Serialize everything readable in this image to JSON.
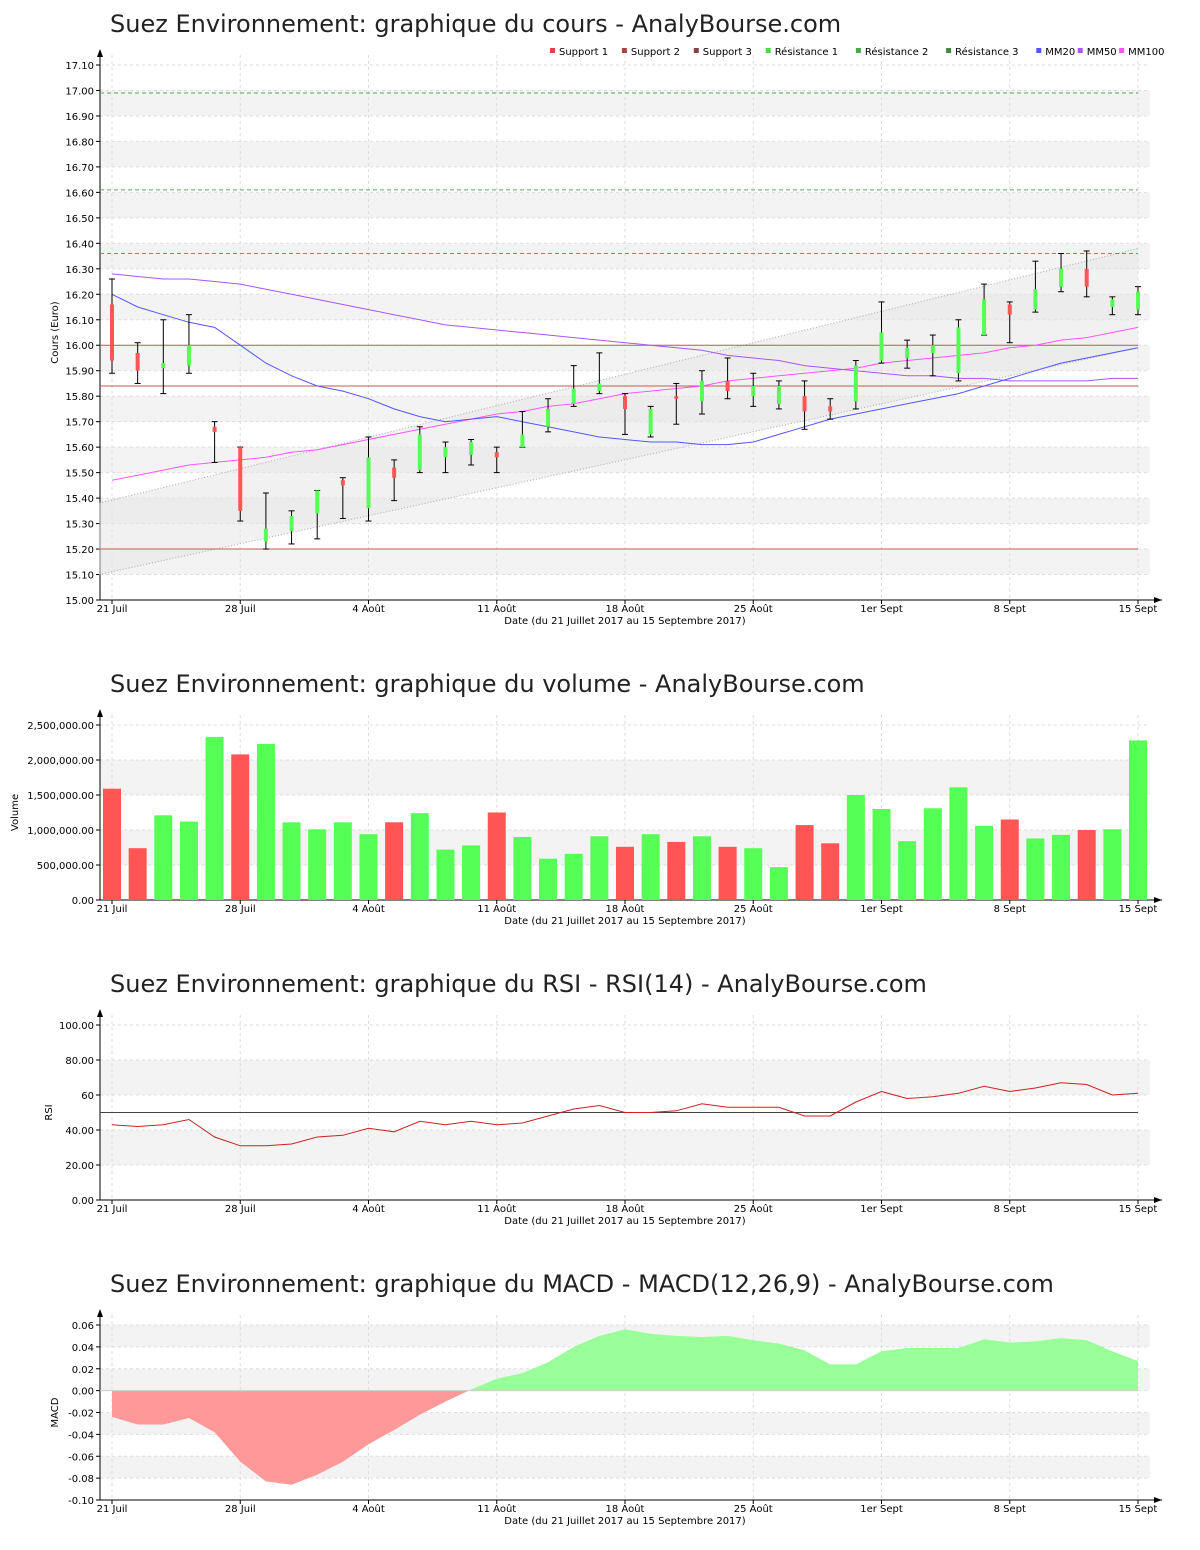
{
  "colors": {
    "up": "#55ff55",
    "down": "#ff5555",
    "support": "#cc5555",
    "resistance": "#55aa55",
    "mm20": "#5555ff",
    "mm50": "#aa55ff",
    "mm100": "#ff55ff",
    "rsi": "#cc2222",
    "macd_pos": "#99ff99",
    "macd_neg": "#ff9999"
  },
  "x_axis": {
    "label": "Date (du 21 Juillet 2017 au 15 Septembre 2017)",
    "tick_labels": [
      "21 Juil",
      "28 Juil",
      "4 Août",
      "11 Août",
      "18 Août",
      "25 Août",
      "1er Sept",
      "8 Sept",
      "15 Sept"
    ],
    "tick_day_index": [
      0,
      5,
      10,
      15,
      20,
      25,
      30,
      35,
      40
    ]
  },
  "chart_data": [
    {
      "type": "candlestick",
      "title": "Suez Environnement: graphique du cours - AnalyBourse.com",
      "ylabel": "Cours (Euro)",
      "ylim": [
        15.0,
        17.1
      ],
      "yticks": [
        "15.00",
        "15.10",
        "15.20",
        "15.30",
        "15.40",
        "15.50",
        "15.60",
        "15.70",
        "15.80",
        "15.90",
        "16.00",
        "16.10",
        "16.20",
        "16.30",
        "16.40",
        "16.50",
        "16.60",
        "16.70",
        "16.80",
        "16.90",
        "17.00",
        "17.10"
      ],
      "legend": [
        {
          "name": "Support 1",
          "color": "#dd4444"
        },
        {
          "name": "Support 2",
          "color": "#aa4444"
        },
        {
          "name": "Support 3",
          "color": "#884444"
        },
        {
          "name": "Résistance 1",
          "color": "#44dd44"
        },
        {
          "name": "Résistance 2",
          "color": "#44aa44"
        },
        {
          "name": "Résistance 3",
          "color": "#448844"
        },
        {
          "name": "MM20",
          "color": "#5555ff"
        },
        {
          "name": "MM50",
          "color": "#aa55ff"
        },
        {
          "name": "MM100",
          "color": "#ff55ff"
        }
      ],
      "levels": {
        "support": [
          15.84,
          16.0,
          15.2
        ],
        "resistance": [
          16.36,
          16.61,
          16.99
        ]
      },
      "ohlc": [
        {
          "o": 16.16,
          "h": 16.26,
          "l": 15.89,
          "c": 15.94
        },
        {
          "o": 15.97,
          "h": 16.01,
          "l": 15.85,
          "c": 15.9
        },
        {
          "o": 15.91,
          "h": 16.1,
          "l": 15.81,
          "c": 15.93
        },
        {
          "o": 15.92,
          "h": 16.12,
          "l": 15.89,
          "c": 16.0
        },
        {
          "o": 15.68,
          "h": 15.7,
          "l": 15.54,
          "c": 15.66
        },
        {
          "o": 15.6,
          "h": 15.6,
          "l": 15.31,
          "c": 15.35
        },
        {
          "o": 15.23,
          "h": 15.42,
          "l": 15.2,
          "c": 15.28
        },
        {
          "o": 15.27,
          "h": 15.35,
          "l": 15.22,
          "c": 15.33
        },
        {
          "o": 15.34,
          "h": 15.43,
          "l": 15.24,
          "c": 15.43
        },
        {
          "o": 15.47,
          "h": 15.48,
          "l": 15.32,
          "c": 15.45
        },
        {
          "o": 15.36,
          "h": 15.64,
          "l": 15.31,
          "c": 15.56
        },
        {
          "o": 15.52,
          "h": 15.55,
          "l": 15.39,
          "c": 15.48
        },
        {
          "o": 15.51,
          "h": 15.68,
          "l": 15.5,
          "c": 15.65
        },
        {
          "o": 15.56,
          "h": 15.62,
          "l": 15.5,
          "c": 15.6
        },
        {
          "o": 15.57,
          "h": 15.63,
          "l": 15.53,
          "c": 15.62
        },
        {
          "o": 15.58,
          "h": 15.6,
          "l": 15.5,
          "c": 15.56
        },
        {
          "o": 15.6,
          "h": 15.74,
          "l": 15.6,
          "c": 15.65
        },
        {
          "o": 15.68,
          "h": 15.79,
          "l": 15.66,
          "c": 15.75
        },
        {
          "o": 15.77,
          "h": 15.92,
          "l": 15.76,
          "c": 15.83
        },
        {
          "o": 15.82,
          "h": 15.97,
          "l": 15.81,
          "c": 15.85
        },
        {
          "o": 15.8,
          "h": 15.81,
          "l": 15.65,
          "c": 15.75
        },
        {
          "o": 15.65,
          "h": 15.76,
          "l": 15.64,
          "c": 15.75
        },
        {
          "o": 15.8,
          "h": 15.85,
          "l": 15.69,
          "c": 15.79
        },
        {
          "o": 15.78,
          "h": 15.9,
          "l": 15.73,
          "c": 15.86
        },
        {
          "o": 15.86,
          "h": 15.95,
          "l": 15.79,
          "c": 15.82
        },
        {
          "o": 15.8,
          "h": 15.89,
          "l": 15.76,
          "c": 15.84
        },
        {
          "o": 15.77,
          "h": 15.86,
          "l": 15.75,
          "c": 15.84
        },
        {
          "o": 15.8,
          "h": 15.86,
          "l": 15.67,
          "c": 15.74
        },
        {
          "o": 15.76,
          "h": 15.79,
          "l": 15.71,
          "c": 15.74
        },
        {
          "o": 15.78,
          "h": 15.94,
          "l": 15.75,
          "c": 15.92
        },
        {
          "o": 15.94,
          "h": 16.17,
          "l": 15.93,
          "c": 16.05
        },
        {
          "o": 15.95,
          "h": 16.02,
          "l": 15.91,
          "c": 15.99
        },
        {
          "o": 15.97,
          "h": 16.04,
          "l": 15.88,
          "c": 16.0
        },
        {
          "o": 15.89,
          "h": 16.1,
          "l": 15.86,
          "c": 16.07
        },
        {
          "o": 16.04,
          "h": 16.24,
          "l": 16.04,
          "c": 16.18
        },
        {
          "o": 16.16,
          "h": 16.17,
          "l": 16.01,
          "c": 16.12
        },
        {
          "o": 16.14,
          "h": 16.33,
          "l": 16.13,
          "c": 16.22
        },
        {
          "o": 16.23,
          "h": 16.36,
          "l": 16.21,
          "c": 16.3
        },
        {
          "o": 16.3,
          "h": 16.37,
          "l": 16.19,
          "c": 16.23
        },
        {
          "o": 16.15,
          "h": 16.19,
          "l": 16.12,
          "c": 16.18
        },
        {
          "o": 16.14,
          "h": 16.23,
          "l": 16.12,
          "c": 16.21
        }
      ],
      "mm20": [
        16.2,
        16.15,
        16.12,
        16.09,
        16.07,
        16.0,
        15.93,
        15.88,
        15.84,
        15.82,
        15.79,
        15.75,
        15.72,
        15.7,
        15.71,
        15.72,
        15.7,
        15.68,
        15.66,
        15.64,
        15.63,
        15.62,
        15.62,
        15.61,
        15.61,
        15.62,
        15.65,
        15.68,
        15.71,
        15.73,
        15.75,
        15.77,
        15.79,
        15.81,
        15.84,
        15.87,
        15.9,
        15.93,
        15.95,
        15.97,
        15.99
      ],
      "mm50": [
        16.28,
        16.27,
        16.26,
        16.26,
        16.25,
        16.24,
        16.22,
        16.2,
        16.18,
        16.16,
        16.14,
        16.12,
        16.1,
        16.08,
        16.07,
        16.06,
        16.05,
        16.04,
        16.03,
        16.02,
        16.01,
        16.0,
        15.99,
        15.98,
        15.96,
        15.95,
        15.94,
        15.92,
        15.91,
        15.9,
        15.89,
        15.88,
        15.88,
        15.87,
        15.87,
        15.86,
        15.86,
        15.86,
        15.86,
        15.87,
        15.87
      ],
      "mm100": [
        15.47,
        15.49,
        15.51,
        15.53,
        15.54,
        15.55,
        15.56,
        15.58,
        15.59,
        15.61,
        15.63,
        15.65,
        15.67,
        15.69,
        15.71,
        15.73,
        15.74,
        15.76,
        15.77,
        15.79,
        15.81,
        15.82,
        15.83,
        15.84,
        15.86,
        15.87,
        15.88,
        15.89,
        15.9,
        15.91,
        15.93,
        15.94,
        15.95,
        15.96,
        15.97,
        15.99,
        16.0,
        16.02,
        16.03,
        16.05,
        16.07
      ],
      "trend_channel": {
        "lower": [
          15.1,
          15.99
        ],
        "upper": [
          15.38,
          16.38
        ]
      }
    },
    {
      "type": "bar",
      "title": "Suez Environnement: graphique du volume - AnalyBourse.com",
      "ylabel": "Volume",
      "ylim": [
        0,
        2500000
      ],
      "yticks": [
        "0.00",
        "500,000.00",
        "1,000,000.00",
        "1,500,000.00",
        "2,000,000.00",
        "2,500,000.00"
      ],
      "values": [
        1590000,
        740000,
        1210000,
        1120000,
        2330000,
        2080000,
        2230000,
        1110000,
        1010000,
        1110000,
        940000,
        1110000,
        1240000,
        720000,
        780000,
        1250000,
        900000,
        590000,
        660000,
        910000,
        760000,
        940000,
        830000,
        910000,
        760000,
        740000,
        470000,
        1070000,
        810000,
        1500000,
        1300000,
        840000,
        1310000,
        1610000,
        1060000,
        1150000,
        880000,
        930000,
        1000000,
        1010000,
        2280000
      ],
      "directions": [
        "down",
        "down",
        "up",
        "up",
        "up",
        "down",
        "up",
        "up",
        "up",
        "up",
        "up",
        "down",
        "up",
        "up",
        "up",
        "down",
        "up",
        "up",
        "up",
        "up",
        "down",
        "up",
        "down",
        "up",
        "down",
        "up",
        "up",
        "down",
        "down",
        "up",
        "up",
        "up",
        "up",
        "up",
        "up",
        "down",
        "up",
        "up",
        "down",
        "up",
        "up"
      ]
    },
    {
      "type": "line",
      "title": "Suez Environnement: graphique du RSI - RSI(14) - AnalyBourse.com",
      "ylabel": "RSI",
      "ylim": [
        0,
        100
      ],
      "yticks": [
        "0.00",
        "20.00",
        "40.00",
        "60",
        "80.00",
        "100.00"
      ],
      "reference": 50,
      "values": [
        43,
        42,
        43,
        46,
        36,
        31,
        31,
        32,
        36,
        37,
        41,
        39,
        45,
        43,
        45,
        43,
        44,
        48,
        52,
        54,
        50,
        50,
        51,
        55,
        53,
        53,
        53,
        48,
        48,
        56,
        62,
        58,
        59,
        61,
        65,
        62,
        64,
        67,
        66,
        60,
        61
      ]
    },
    {
      "type": "area",
      "title": "Suez Environnement: graphique du MACD - MACD(12,26,9) - AnalyBourse.com",
      "ylabel": "MACD",
      "ylim": [
        -0.1,
        0.06
      ],
      "yticks": [
        "-0.10",
        "-0.08",
        "-0.06",
        "-0.04",
        "-0.02",
        "0.00",
        "0.02",
        "0.04",
        "0.06"
      ],
      "values": [
        -0.024,
        -0.031,
        -0.031,
        -0.025,
        -0.038,
        -0.065,
        -0.083,
        -0.086,
        -0.077,
        -0.065,
        -0.049,
        -0.036,
        -0.022,
        -0.01,
        0.001,
        0.011,
        0.016,
        0.026,
        0.04,
        0.05,
        0.056,
        0.052,
        0.05,
        0.049,
        0.05,
        0.046,
        0.043,
        0.037,
        0.024,
        0.024,
        0.036,
        0.039,
        0.039,
        0.039,
        0.047,
        0.044,
        0.045,
        0.048,
        0.046,
        0.036,
        0.027
      ]
    }
  ]
}
